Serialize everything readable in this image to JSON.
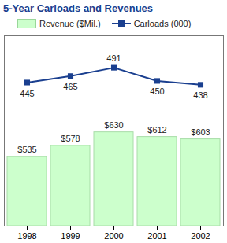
{
  "chart_data": {
    "type": "bar",
    "title": "5-Year Carloads and Revenues",
    "categories": [
      "1998",
      "1999",
      "2000",
      "2001",
      "2002"
    ],
    "series": [
      {
        "name": "Revenue ($Mil.)",
        "type": "bar",
        "color": "#ccffcc",
        "values": [
          535,
          578,
          630,
          612,
          603
        ],
        "value_labels": [
          "$535",
          "$578",
          "$630",
          "$612",
          "$603"
        ]
      },
      {
        "name": "Carloads (000)",
        "type": "line",
        "axis": "y2",
        "color": "#1a3f8f",
        "marker": "square",
        "values": [
          445,
          465,
          491,
          450,
          438
        ]
      }
    ],
    "ylim": [
      270,
      1000
    ],
    "y2lim": [
      0,
      590
    ],
    "tick_labels": "x",
    "data_labels": true,
    "legend": "top"
  }
}
